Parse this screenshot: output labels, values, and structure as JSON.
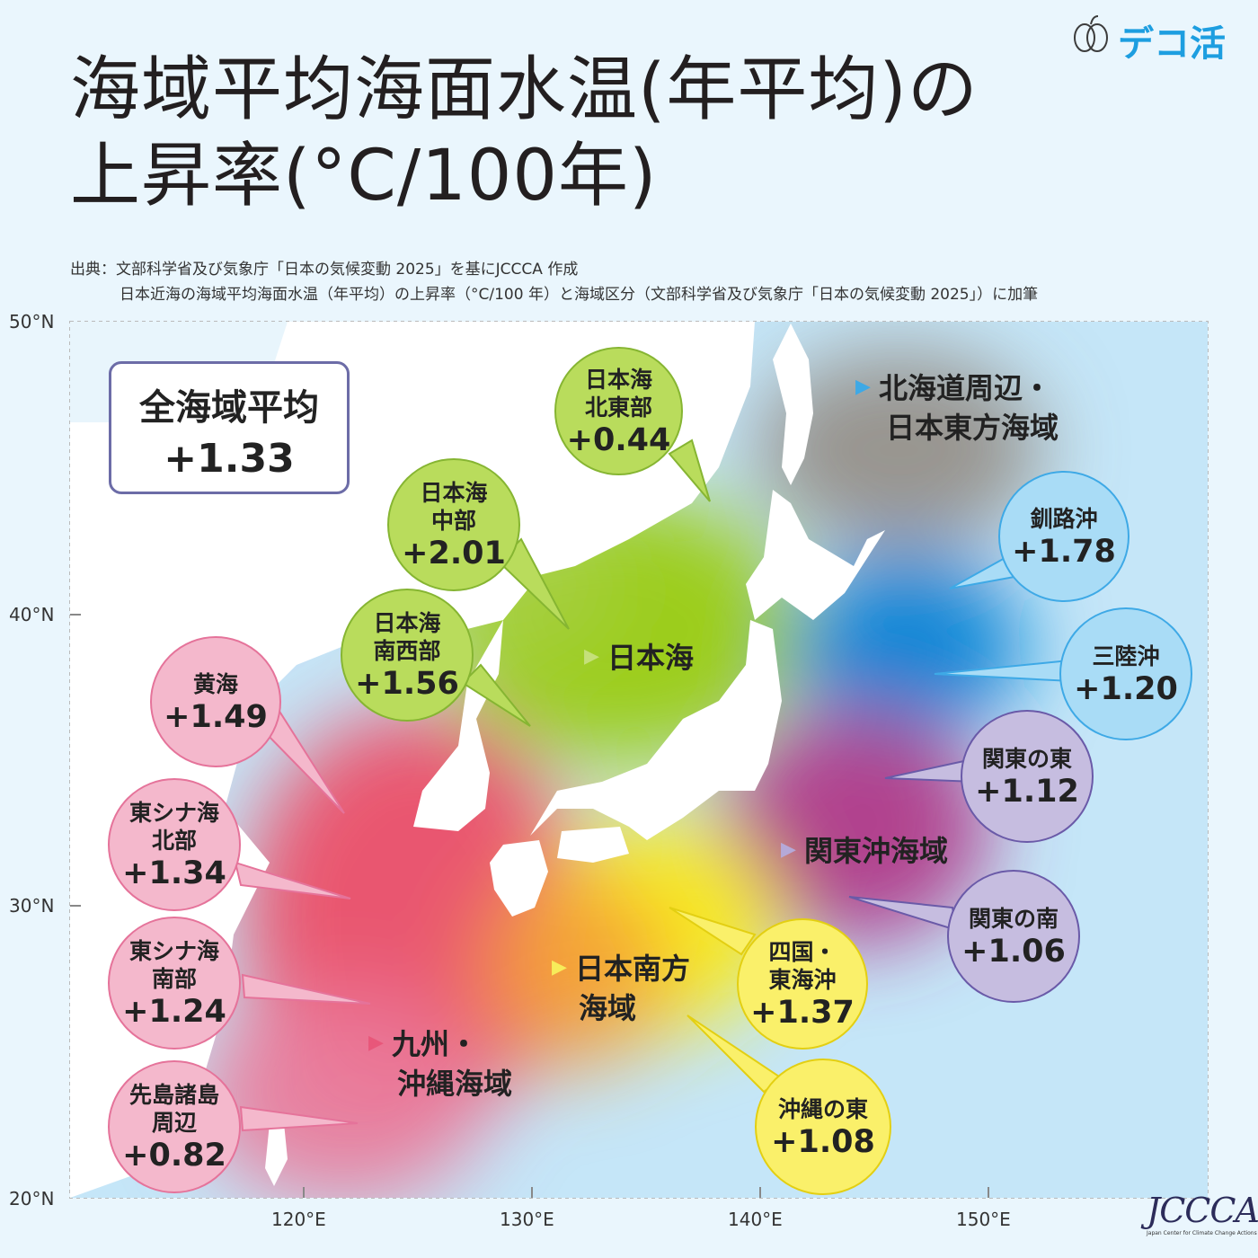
{
  "title": {
    "line1": "海域平均海面水温(年平均)の",
    "line2": "上昇率(°C/100年)"
  },
  "source": {
    "line1": "出典：文部科学省及び気象庁「日本の気候変動 2025」を基にJCCCA 作成",
    "line2": "日本近海の海域平均海面水温（年平均）の上昇率（°C/100 年）と海域区分（文部科学省及び気象庁「日本の気候変動 2025」）に加筆"
  },
  "logo": {
    "text": "デコ活"
  },
  "axes": {
    "latitude_labels": [
      "50°N",
      "40°N",
      "30°N",
      "20°N"
    ],
    "longitude_labels": [
      "120°E",
      "130°E",
      "140°E",
      "150°E"
    ]
  },
  "overall": {
    "label": "全海域平均",
    "value": "+1.33"
  },
  "regions": [
    {
      "name": "北海道周辺・",
      "name2": "日本東方海域",
      "color": "#3ea9e6"
    },
    {
      "name": "日本海",
      "name2": "",
      "color": "#c5e07a"
    },
    {
      "name": "関東沖海域",
      "name2": "",
      "color": "#b5a9d8"
    },
    {
      "name": "日本南方",
      "name2": "海域",
      "color": "#f7ec5a"
    },
    {
      "name": "九州・",
      "name2": "沖縄海域",
      "color": "#e8577a"
    }
  ],
  "sea_areas": [
    {
      "name": "日本海\n北東部",
      "value": "+0.44",
      "color": "green"
    },
    {
      "name": "日本海\n中部",
      "value": "+2.01",
      "color": "green"
    },
    {
      "name": "日本海\n南西部",
      "value": "+1.56",
      "color": "green"
    },
    {
      "name": "黄海",
      "value": "+1.49",
      "color": "pink"
    },
    {
      "name": "東シナ海\n北部",
      "value": "+1.34",
      "color": "pink"
    },
    {
      "name": "東シナ海\n南部",
      "value": "+1.24",
      "color": "pink"
    },
    {
      "name": "先島諸島\n周辺",
      "value": "+0.82",
      "color": "pink"
    },
    {
      "name": "釧路沖",
      "value": "+1.78",
      "color": "blue"
    },
    {
      "name": "三陸沖",
      "value": "+1.20",
      "color": "blue"
    },
    {
      "name": "関東の東",
      "value": "+1.12",
      "color": "purple"
    },
    {
      "name": "関東の南",
      "value": "+1.06",
      "color": "purple"
    },
    {
      "name": "四国・\n東海沖",
      "value": "+1.37",
      "color": "yellow"
    },
    {
      "name": "沖縄の東",
      "value": "+1.08",
      "color": "yellow"
    }
  ],
  "footer_logo": {
    "mark": "JCCCA",
    "subtitle": "Japan Center for Climate Change Actions"
  }
}
